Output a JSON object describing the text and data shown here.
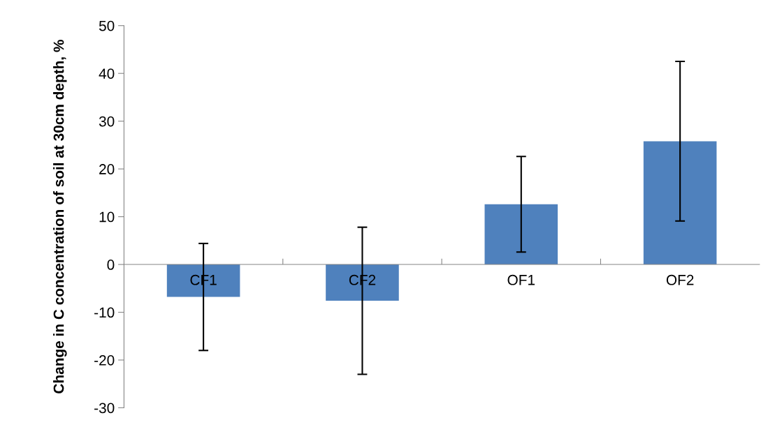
{
  "chart_data": {
    "type": "bar",
    "ylabel": "Change in C concentration of soil at 30cm depth, %",
    "categories": [
      "CF1",
      "CF2",
      "OF1",
      "OF2"
    ],
    "values": [
      -6.8,
      -7.6,
      12.6,
      25.8
    ],
    "errors": [
      11.2,
      15.4,
      10.0,
      16.7
    ],
    "color": "#4f81bd",
    "ylim": [
      -30,
      50
    ],
    "yticks": [
      -30,
      -20,
      -10,
      0,
      10,
      20,
      30,
      40,
      50
    ],
    "grid": false
  }
}
